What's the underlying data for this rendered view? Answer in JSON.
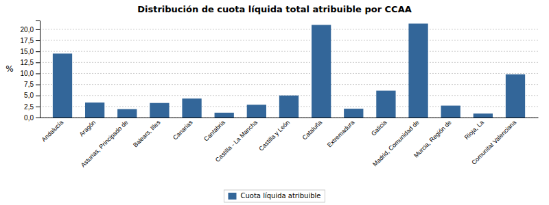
{
  "chart_data": {
    "type": "bar",
    "title": "Distribución de cuota líquida total atribuible por CCAA",
    "ylabel": "%",
    "categories": [
      "Andalucía",
      "Aragón",
      "Asturias, Principado de",
      "Balears, Illes",
      "Canarias",
      "Cantabria",
      "Castilla - La Mancha",
      "Castilla y León",
      "Cataluña",
      "Extremadura",
      "Galicia",
      "Madrid, Comunidad de",
      "Murcia, Región de",
      "Rioja, La",
      "Comunitat Valenciana"
    ],
    "series": [
      {
        "name": "Cuota líquida atribuible",
        "color": "#336699",
        "values": [
          14.5,
          3.4,
          1.9,
          3.3,
          4.3,
          1.1,
          2.9,
          5.0,
          21.0,
          2.0,
          6.1,
          21.3,
          2.7,
          0.9,
          9.8
        ]
      }
    ],
    "ylim": [
      0,
      22
    ],
    "yticks": [
      {
        "value": 0.0,
        "label": "0,0"
      },
      {
        "value": 2.5,
        "label": "2,5"
      },
      {
        "value": 5.0,
        "label": "5,0"
      },
      {
        "value": 7.5,
        "label": "7,5"
      },
      {
        "value": 10.0,
        "label": "10,0"
      },
      {
        "value": 12.5,
        "label": "12,5"
      },
      {
        "value": 15.0,
        "label": "15,0"
      },
      {
        "value": 17.5,
        "label": "17,5"
      },
      {
        "value": 20.0,
        "label": "20,0"
      }
    ],
    "grid": true,
    "legend": "bottom"
  }
}
